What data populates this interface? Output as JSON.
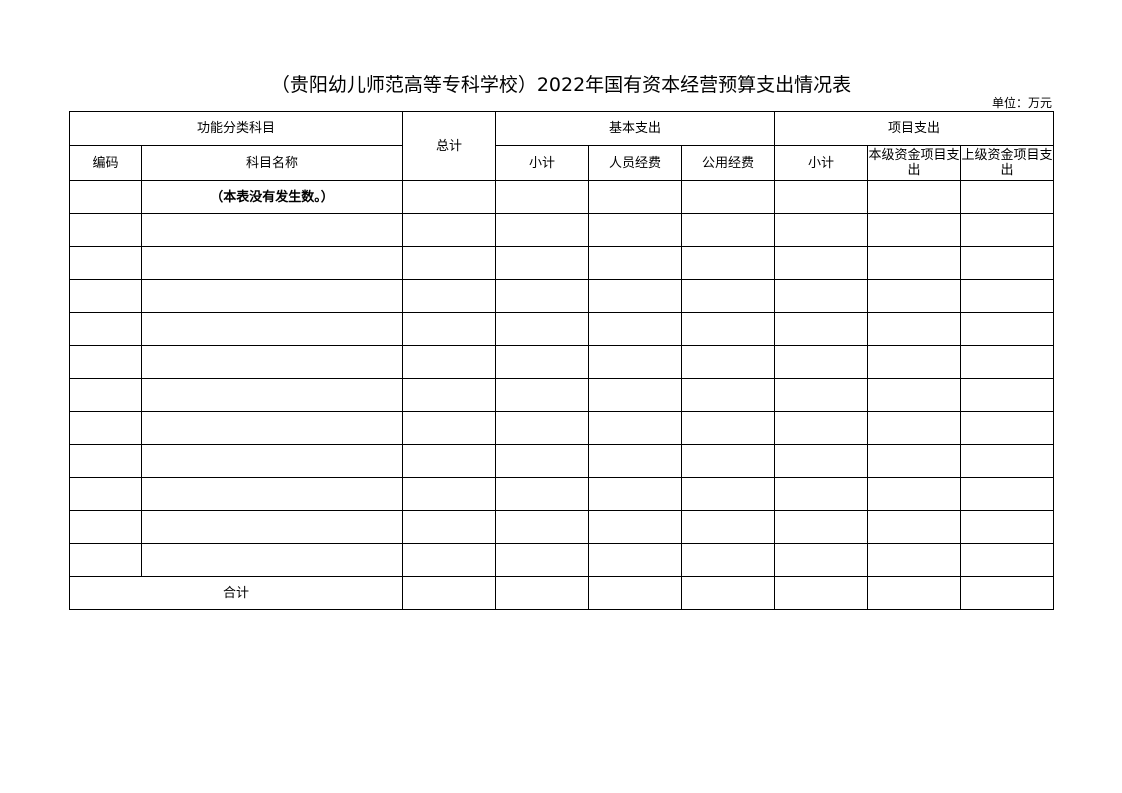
{
  "title": "（贵阳幼儿师范高等专科学校）2022年国有资本经营预算支出情况表",
  "unit": "单位：万元",
  "header": {
    "functional_category": "功能分类科目",
    "total": "总计",
    "basic_expenditure": "基本支出",
    "project_expenditure": "项目支出",
    "code": "编码",
    "subject_name": "科目名称",
    "basic_subtotal": "小计",
    "personnel": "人员经费",
    "public": "公用经费",
    "project_subtotal": "小计",
    "local_project": "本级资金项目支出",
    "superior_project": "上级资金项目支出"
  },
  "rows": [
    {
      "code": "",
      "name": "（本表没有发生数。）"
    },
    {
      "code": "",
      "name": ""
    },
    {
      "code": "",
      "name": ""
    },
    {
      "code": "",
      "name": ""
    },
    {
      "code": "",
      "name": ""
    },
    {
      "code": "",
      "name": ""
    },
    {
      "code": "",
      "name": ""
    },
    {
      "code": "",
      "name": ""
    },
    {
      "code": "",
      "name": ""
    },
    {
      "code": "",
      "name": ""
    },
    {
      "code": "",
      "name": ""
    },
    {
      "code": "",
      "name": ""
    }
  ],
  "total_row_label": "合计"
}
